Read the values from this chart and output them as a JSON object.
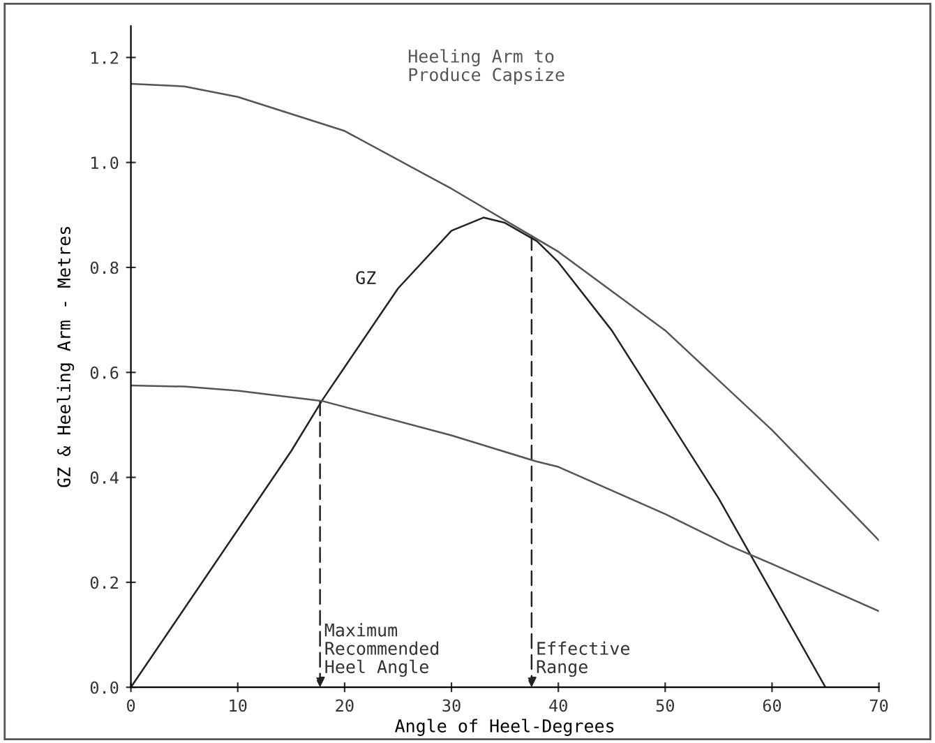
{
  "chart_data": {
    "type": "line",
    "xlabel": "Angle of Heel-Degrees",
    "ylabel": "GZ & Heeling Arm - Metres",
    "xlim": [
      0,
      70
    ],
    "ylim": [
      0,
      1.26
    ],
    "xticks": [
      0,
      10,
      20,
      30,
      40,
      50,
      60,
      70
    ],
    "yticks": [
      {
        "value": 0,
        "label": "0.0"
      },
      {
        "value": 0.2,
        "label": "0.2"
      },
      {
        "value": 0.4,
        "label": "0.4"
      },
      {
        "value": 0.6,
        "label": "0.6"
      },
      {
        "value": 0.8,
        "label": "0.8"
      },
      {
        "value": 1.0,
        "label": "1.0"
      },
      {
        "value": 1.2,
        "label": "1.2"
      }
    ],
    "grid": false,
    "legend": false,
    "marker": "none",
    "line_style": "solid",
    "series": [
      {
        "name": "GZ",
        "color": "#222222",
        "x": [
          0,
          5,
          10,
          15,
          18,
          20,
          25,
          30,
          33,
          35,
          38,
          40,
          45,
          50,
          55,
          60,
          65
        ],
        "values": [
          0,
          0.15,
          0.3,
          0.45,
          0.55,
          0.61,
          0.76,
          0.87,
          0.895,
          0.885,
          0.85,
          0.81,
          0.68,
          0.52,
          0.36,
          0.18,
          0
        ]
      },
      {
        "name": "Heeling Arm to\nProduce Capsize",
        "color": "#555555",
        "x": [
          0,
          5,
          10,
          20,
          30,
          37.5,
          40,
          50,
          60,
          70
        ],
        "values": [
          1.15,
          1.145,
          1.125,
          1.06,
          0.95,
          0.86,
          0.83,
          0.68,
          0.49,
          0.28
        ]
      },
      {
        "color": "#555555",
        "x": [
          0,
          5,
          10,
          18,
          30,
          38,
          40,
          50,
          56,
          60,
          70
        ],
        "values": [
          0.575,
          0.573,
          0.565,
          0.545,
          0.48,
          0.43,
          0.42,
          0.33,
          0.27,
          0.235,
          0.145
        ]
      }
    ],
    "annotations": [
      {
        "text": "Maximum\nRecommended\nHeel Angle",
        "x": 17.7,
        "y": 0.545
      },
      {
        "text": "Effective\nRange",
        "x": 37.5,
        "y": 0.86
      }
    ]
  }
}
